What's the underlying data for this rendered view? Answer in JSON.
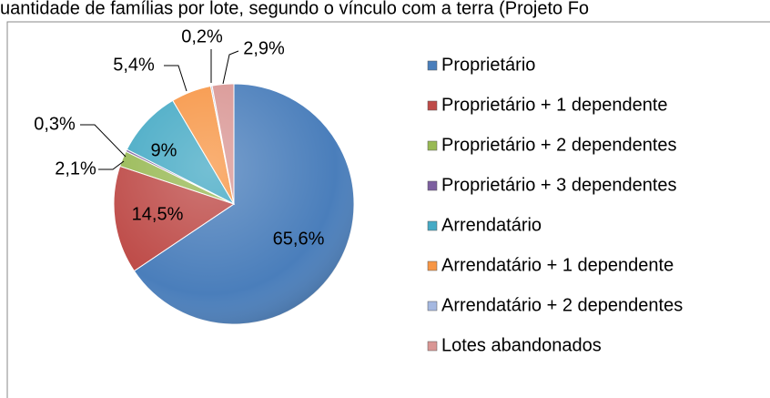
{
  "chart_data": {
    "type": "pie",
    "title": "uantidade de famílias por lote, segundo o vínculo com a terra (Projeto Fo",
    "categories": [
      "Proprietário",
      "Proprietário + 1 dependente",
      "Proprietário + 2 dependentes",
      "Proprietário + 3 dependentes",
      "Arrendatário",
      "Arrendatário + 1 dependente",
      "Arrendatário + 2 dependentes",
      "Lotes abandonados"
    ],
    "values": [
      65.6,
      14.5,
      2.1,
      0.3,
      9,
      5.4,
      0.2,
      2.9
    ],
    "value_labels": [
      "65,6%",
      "14,5%",
      "2,1%",
      "0,3%",
      "9%",
      "5,4%",
      "0,2%",
      "2,9%"
    ],
    "colors": [
      "#4a7ebb",
      "#be4b48",
      "#98b954",
      "#7d60a0",
      "#46aac5",
      "#f79646",
      "#a5b8e0",
      "#d99694"
    ],
    "legend": "right"
  }
}
